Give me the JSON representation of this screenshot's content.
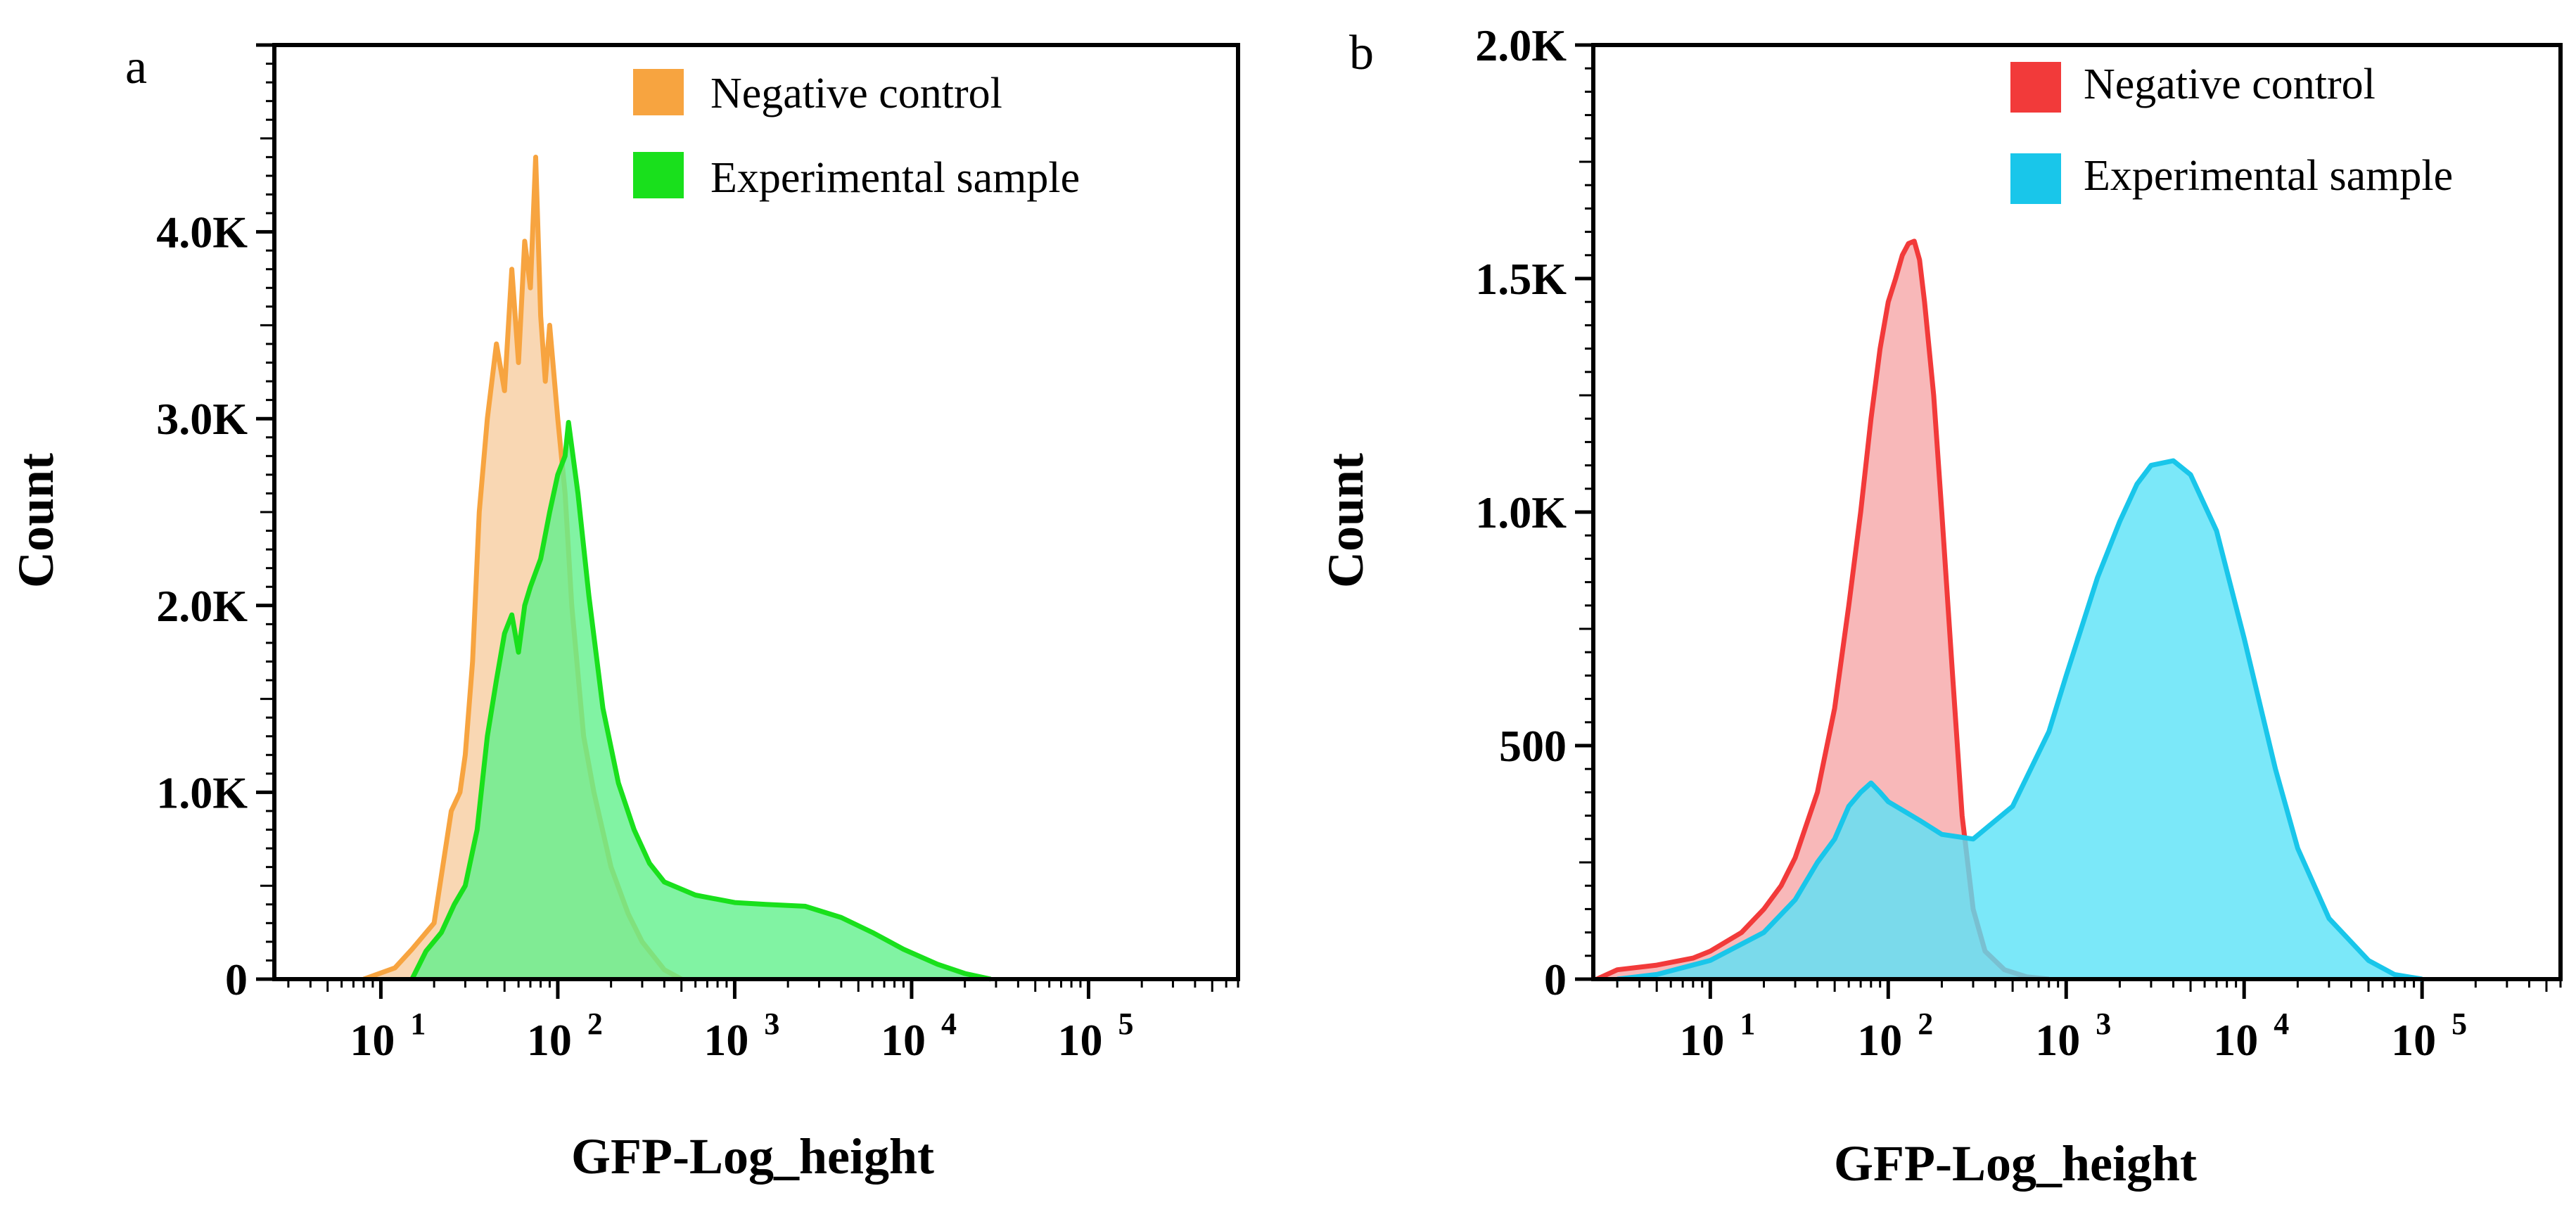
{
  "chart_data": [
    {
      "panel": "a",
      "type": "area",
      "title": "",
      "xlabel": "GFP-Log_height",
      "ylabel": "Count",
      "xscale": "log",
      "xlim": [
        2.5,
        700000
      ],
      "ylim": [
        0,
        5000
      ],
      "yticks": [
        {
          "value": 0,
          "label": "0"
        },
        {
          "value": 1000,
          "label": "1.0K"
        },
        {
          "value": 2000,
          "label": "2.0K"
        },
        {
          "value": 3000,
          "label": "3.0K"
        },
        {
          "value": 4000,
          "label": "4.0K"
        }
      ],
      "xticks": [
        {
          "value": 10,
          "base": "10",
          "exp": "1"
        },
        {
          "value": 100,
          "base": "10",
          "exp": "2"
        },
        {
          "value": 1000,
          "base": "10",
          "exp": "3"
        },
        {
          "value": 10000,
          "base": "10",
          "exp": "4"
        },
        {
          "value": 100000,
          "base": "10",
          "exp": "5"
        }
      ],
      "legend_position": "top-right",
      "series": [
        {
          "name": "Negative control",
          "color": "#F7A440",
          "fill": "#F7C999",
          "points": [
            [
              8,
              0
            ],
            [
              12,
              60
            ],
            [
              15,
              160
            ],
            [
              20,
              300
            ],
            [
              25,
              900
            ],
            [
              28,
              1000
            ],
            [
              30,
              1200
            ],
            [
              33,
              1700
            ],
            [
              36,
              2500
            ],
            [
              40,
              3000
            ],
            [
              45,
              3400
            ],
            [
              50,
              3150
            ],
            [
              55,
              3800
            ],
            [
              60,
              3300
            ],
            [
              65,
              3950
            ],
            [
              70,
              3700
            ],
            [
              75,
              4400
            ],
            [
              80,
              3550
            ],
            [
              85,
              3200
            ],
            [
              90,
              3500
            ],
            [
              100,
              3000
            ],
            [
              110,
              2600
            ],
            [
              120,
              2000
            ],
            [
              140,
              1300
            ],
            [
              160,
              1000
            ],
            [
              200,
              600
            ],
            [
              250,
              350
            ],
            [
              300,
              200
            ],
            [
              400,
              50
            ],
            [
              500,
              0
            ]
          ]
        },
        {
          "name": "Experimental sample",
          "color": "#19E01C",
          "fill": "#62F08C",
          "points": [
            [
              15,
              0
            ],
            [
              18,
              150
            ],
            [
              22,
              250
            ],
            [
              26,
              400
            ],
            [
              30,
              500
            ],
            [
              35,
              800
            ],
            [
              40,
              1300
            ],
            [
              45,
              1600
            ],
            [
              50,
              1850
            ],
            [
              55,
              1950
            ],
            [
              60,
              1750
            ],
            [
              65,
              2000
            ],
            [
              70,
              2100
            ],
            [
              80,
              2250
            ],
            [
              90,
              2500
            ],
            [
              100,
              2700
            ],
            [
              110,
              2800
            ],
            [
              115,
              2980
            ],
            [
              130,
              2600
            ],
            [
              150,
              2050
            ],
            [
              180,
              1450
            ],
            [
              220,
              1050
            ],
            [
              270,
              800
            ],
            [
              330,
              620
            ],
            [
              400,
              520
            ],
            [
              600,
              450
            ],
            [
              1000,
              410
            ],
            [
              1500,
              400
            ],
            [
              2500,
              390
            ],
            [
              4000,
              330
            ],
            [
              6000,
              250
            ],
            [
              9000,
              160
            ],
            [
              14000,
              80
            ],
            [
              20000,
              30
            ],
            [
              28000,
              0
            ]
          ]
        }
      ]
    },
    {
      "panel": "b",
      "type": "area",
      "title": "",
      "xlabel": "GFP-Log_height",
      "ylabel": "Count",
      "xscale": "log",
      "xlim": [
        2.2,
        600000
      ],
      "ylim": [
        0,
        2000
      ],
      "yticks": [
        {
          "value": 0,
          "label": "0"
        },
        {
          "value": 500,
          "label": "500"
        },
        {
          "value": 1000,
          "label": "1.0K"
        },
        {
          "value": 1500,
          "label": "1.5K"
        },
        {
          "value": 2000,
          "label": "2.0K"
        }
      ],
      "xticks": [
        {
          "value": 10,
          "base": "10",
          "exp": "1"
        },
        {
          "value": 100,
          "base": "10",
          "exp": "2"
        },
        {
          "value": 1000,
          "base": "10",
          "exp": "3"
        },
        {
          "value": 10000,
          "base": "10",
          "exp": "4"
        },
        {
          "value": 100000,
          "base": "10",
          "exp": "5"
        }
      ],
      "legend_position": "top-right",
      "series": [
        {
          "name": "Negative control",
          "color": "#F23A3A",
          "fill": "#F5A0A2",
          "points": [
            [
              2.3,
              0
            ],
            [
              3,
              20
            ],
            [
              5,
              30
            ],
            [
              8,
              45
            ],
            [
              10,
              60
            ],
            [
              15,
              100
            ],
            [
              20,
              150
            ],
            [
              25,
              200
            ],
            [
              30,
              260
            ],
            [
              40,
              400
            ],
            [
              50,
              580
            ],
            [
              60,
              800
            ],
            [
              70,
              1000
            ],
            [
              80,
              1200
            ],
            [
              90,
              1350
            ],
            [
              100,
              1450
            ],
            [
              110,
              1500
            ],
            [
              120,
              1550
            ],
            [
              130,
              1575
            ],
            [
              140,
              1580
            ],
            [
              150,
              1540
            ],
            [
              160,
              1450
            ],
            [
              180,
              1250
            ],
            [
              200,
              1000
            ],
            [
              230,
              650
            ],
            [
              260,
              350
            ],
            [
              300,
              150
            ],
            [
              350,
              60
            ],
            [
              450,
              20
            ],
            [
              600,
              5
            ],
            [
              800,
              0
            ]
          ]
        },
        {
          "name": "Experimental sample",
          "color": "#19C6EA",
          "fill": "#5AE2F8",
          "points": [
            [
              3,
              0
            ],
            [
              5,
              10
            ],
            [
              10,
              40
            ],
            [
              20,
              100
            ],
            [
              30,
              170
            ],
            [
              40,
              250
            ],
            [
              50,
              300
            ],
            [
              60,
              370
            ],
            [
              70,
              400
            ],
            [
              80,
              420
            ],
            [
              90,
              400
            ],
            [
              100,
              380
            ],
            [
              150,
              340
            ],
            [
              200,
              310
            ],
            [
              300,
              300
            ],
            [
              500,
              370
            ],
            [
              800,
              530
            ],
            [
              1000,
              650
            ],
            [
              1500,
              860
            ],
            [
              2000,
              980
            ],
            [
              2500,
              1060
            ],
            [
              3000,
              1100
            ],
            [
              4000,
              1110
            ],
            [
              5000,
              1080
            ],
            [
              7000,
              960
            ],
            [
              10000,
              730
            ],
            [
              15000,
              450
            ],
            [
              20000,
              280
            ],
            [
              30000,
              130
            ],
            [
              50000,
              40
            ],
            [
              70000,
              10
            ],
            [
              100000,
              0
            ]
          ]
        }
      ]
    }
  ]
}
